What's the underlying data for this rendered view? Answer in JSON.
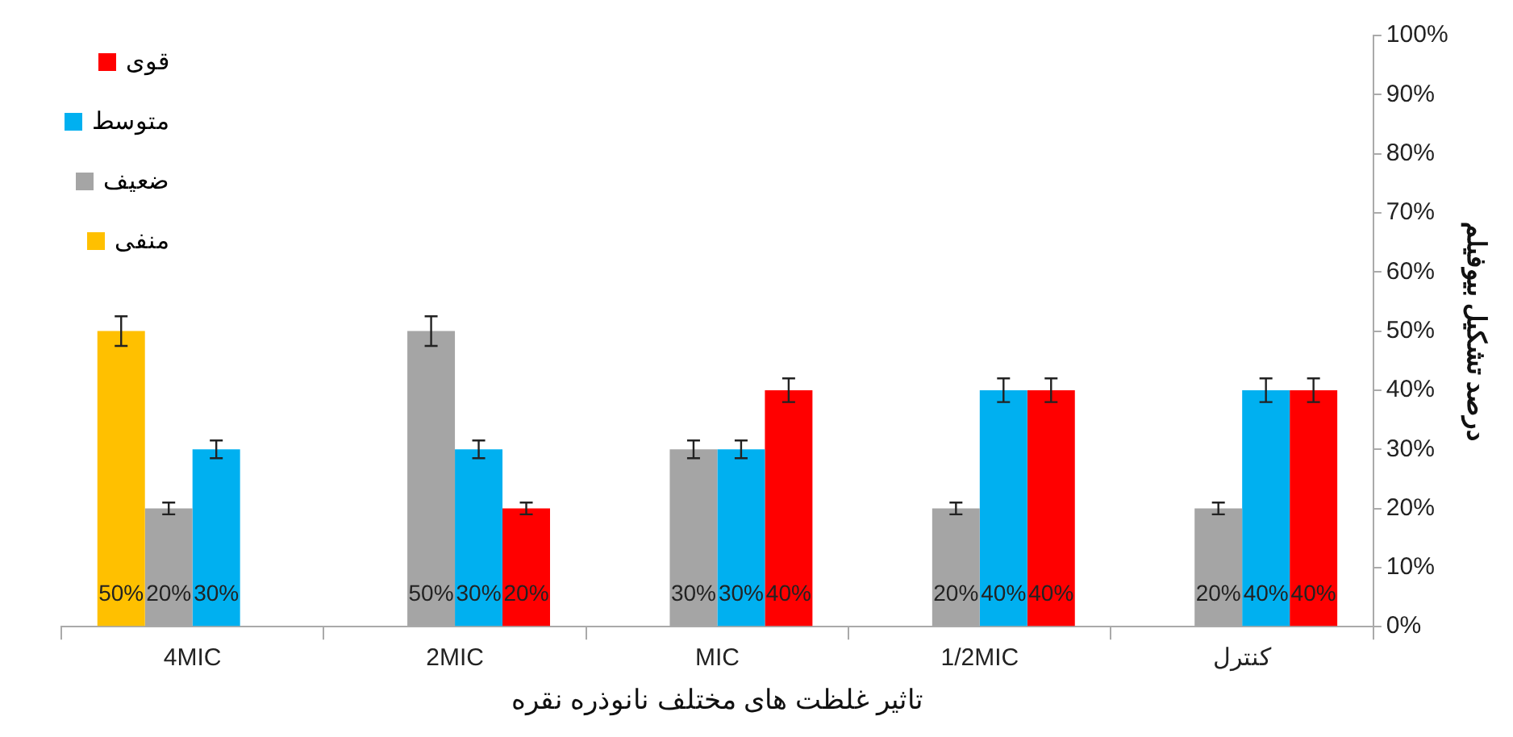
{
  "chart_data": {
    "type": "bar",
    "xlabel": "تاثیر غلظت های مختلف نانوذره نقره",
    "ylabel": "درصد تشکیل بیوفیلم",
    "categories": [
      "4MIC",
      "2MIC",
      "MIC",
      "1/2MIC",
      "کنترل"
    ],
    "series": [
      {
        "name": "منفی",
        "color": "#ffc000",
        "values": [
          50,
          null,
          null,
          null,
          null
        ],
        "errors": [
          2.5,
          null,
          null,
          null,
          null
        ],
        "value_labels": [
          "50%",
          null,
          null,
          null,
          null
        ]
      },
      {
        "name": "ضعیف",
        "color": "#a5a5a5",
        "values": [
          20,
          50,
          30,
          20,
          20
        ],
        "errors": [
          1,
          2.5,
          1.5,
          1,
          1
        ],
        "value_labels": [
          "20%",
          "50%",
          "30%",
          "20%",
          "20%"
        ]
      },
      {
        "name": "متوسط",
        "color": "#00b0f0",
        "values": [
          30,
          30,
          30,
          40,
          40
        ],
        "errors": [
          1.5,
          1.5,
          1.5,
          2,
          2
        ],
        "value_labels": [
          "30%",
          "30%",
          "30%",
          "40%",
          "40%"
        ]
      },
      {
        "name": "قوی",
        "color": "#ff0000",
        "values": [
          null,
          20,
          40,
          40,
          40
        ],
        "errors": [
          null,
          1,
          2,
          2,
          2
        ],
        "value_labels": [
          null,
          "20%",
          "40%",
          "40%",
          "40%"
        ]
      }
    ],
    "ylim": [
      0,
      100
    ],
    "yticks": [
      {
        "value": 0,
        "label": "0%"
      },
      {
        "value": 10,
        "label": "10%"
      },
      {
        "value": 20,
        "label": "20%"
      },
      {
        "value": 30,
        "label": "30%"
      },
      {
        "value": 40,
        "label": "40%"
      },
      {
        "value": 50,
        "label": "50%"
      },
      {
        "value": 60,
        "label": "60%"
      },
      {
        "value": 70,
        "label": "70%"
      },
      {
        "value": 80,
        "label": "80%"
      },
      {
        "value": 90,
        "label": "90%"
      },
      {
        "value": 100,
        "label": "100%"
      }
    ],
    "grid": false,
    "legend": "top left"
  }
}
